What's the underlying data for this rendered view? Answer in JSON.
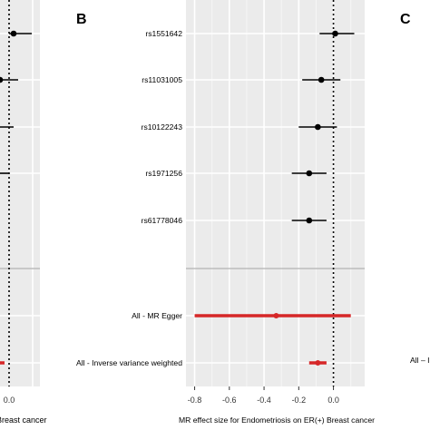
{
  "panels": {
    "left_label": "",
    "center_label": "B",
    "right_label": "C"
  },
  "chart_data": [
    {
      "type": "scatter",
      "title": "",
      "partial": "left panel (cropped)",
      "xlabel_fragment": "Breast cancer",
      "xticks": [
        "0.0"
      ],
      "rows": [
        {
          "x": 0.01,
          "lo": 0.0,
          "hi": 0.05,
          "color": "#000000"
        },
        {
          "x": -0.02,
          "lo": -0.06,
          "hi": 0.02,
          "color": "#000000"
        },
        {
          "x": null,
          "lo": null,
          "hi": 0.01,
          "color": "#000000"
        },
        {
          "x": null,
          "lo": null,
          "hi": 0.0,
          "color": "#000000"
        },
        {
          "x": null,
          "lo": null,
          "hi": null,
          "color": "#000000"
        },
        {
          "x": null,
          "lo": null,
          "hi": -0.01,
          "color": "#d62728"
        }
      ]
    },
    {
      "type": "scatter",
      "title": "",
      "xlabel": "MR effect size for Endometriosis on ER(+) Breast cancer",
      "ylabel": "",
      "xlim": [
        -0.85,
        0.18
      ],
      "xticks": [
        "-0.8",
        "-0.6",
        "-0.4",
        "-0.2",
        "0.0"
      ],
      "xtick_values": [
        -0.8,
        -0.6,
        -0.4,
        -0.2,
        0.0
      ],
      "reference_line_x": 0,
      "grid": true,
      "snps": [
        {
          "label": "rs1551642",
          "effect": 0.01,
          "lo": -0.08,
          "hi": 0.12
        },
        {
          "label": "rs11031005",
          "effect": -0.07,
          "lo": -0.18,
          "hi": 0.04
        },
        {
          "label": "rs10122243",
          "effect": -0.09,
          "lo": -0.2,
          "hi": 0.02
        },
        {
          "label": "rs1971256",
          "effect": -0.14,
          "lo": -0.24,
          "hi": -0.04
        },
        {
          "label": "rs61778046",
          "effect": -0.14,
          "lo": -0.24,
          "hi": -0.04
        }
      ],
      "summary": [
        {
          "label": "All - MR Egger",
          "effect": -0.33,
          "lo": -0.8,
          "hi": 0.1,
          "color": "#d62728"
        },
        {
          "label": "All - Inverse variance weighted",
          "effect": -0.09,
          "lo": -0.14,
          "hi": -0.04,
          "color": "#d62728"
        }
      ]
    },
    {
      "type": "scatter",
      "title": "",
      "partial": "right panel (cropped)",
      "visible_row_fragment": "All – In"
    }
  ]
}
